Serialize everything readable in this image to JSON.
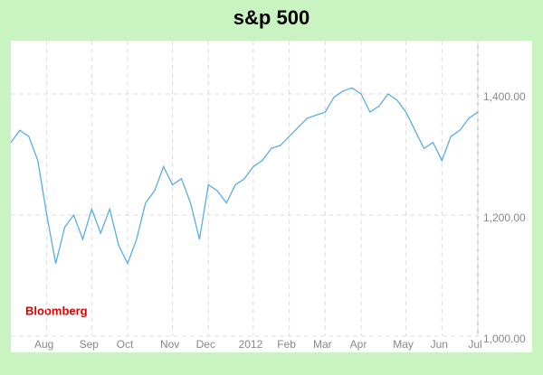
{
  "chart_data": {
    "type": "line",
    "title": "s&p 500",
    "annotation": "Bloomberg",
    "categories": [
      null,
      null,
      null,
      null,
      "Aug",
      null,
      null,
      null,
      null,
      "Sep",
      null,
      null,
      null,
      "Oct",
      null,
      null,
      null,
      null,
      "Nov",
      null,
      null,
      null,
      "Dec",
      null,
      null,
      null,
      null,
      "2012",
      null,
      null,
      null,
      "Feb",
      null,
      null,
      null,
      "Mar",
      null,
      null,
      null,
      "Apr",
      null,
      null,
      null,
      null,
      "May",
      null,
      null,
      null,
      "Jun",
      null,
      null,
      null,
      "Jul"
    ],
    "series": [
      {
        "name": "S&P 500",
        "color": "#5aaee0",
        "values": [
          1320,
          1340,
          1330,
          1290,
          1200,
          1120,
          1180,
          1200,
          1160,
          1210,
          1170,
          1210,
          1150,
          1120,
          1160,
          1220,
          1240,
          1280,
          1250,
          1260,
          1220,
          1160,
          1250,
          1240,
          1220,
          1250,
          1260,
          1280,
          1290,
          1310,
          1315,
          1330,
          1345,
          1360,
          1365,
          1370,
          1395,
          1405,
          1410,
          1400,
          1370,
          1380,
          1400,
          1390,
          1370,
          1340,
          1310,
          1320,
          1290,
          1330,
          1340,
          1360,
          1370
        ]
      }
    ],
    "ylim": [
      1000,
      1488
    ],
    "yticks": [
      {
        "value": 1000,
        "label": "1,000.00"
      },
      {
        "value": 1200,
        "label": "1,200.00"
      },
      {
        "value": 1400,
        "label": "1,400.00"
      }
    ],
    "grid": true
  }
}
